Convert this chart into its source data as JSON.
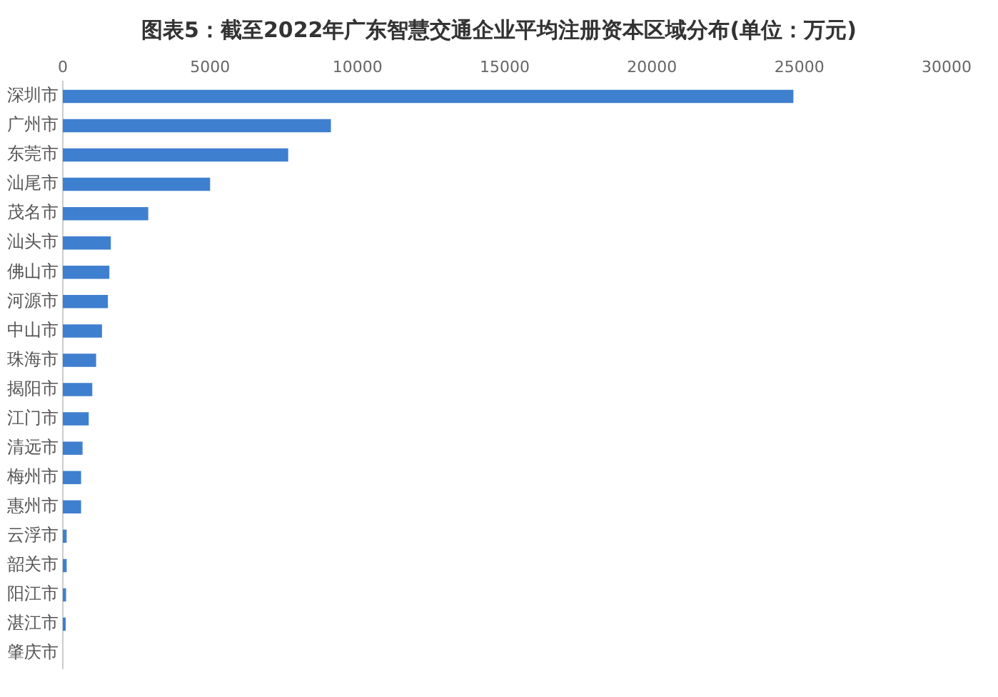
{
  "chart_data": {
    "type": "bar",
    "orientation": "horizontal",
    "title": "图表5：截至2022年广东智慧交通企业平均注册资本区域分布(单位：万元)",
    "categories": [
      "深圳市",
      "广州市",
      "东莞市",
      "汕尾市",
      "茂名市",
      "汕头市",
      "佛山市",
      "河源市",
      "中山市",
      "珠海市",
      "揭阳市",
      "江门市",
      "清远市",
      "梅州市",
      "惠州市",
      "云浮市",
      "韶关市",
      "阳江市",
      "湛江市",
      "肇庆市"
    ],
    "values": [
      24800,
      9100,
      7650,
      5000,
      2900,
      1630,
      1580,
      1530,
      1330,
      1130,
      1000,
      880,
      670,
      620,
      620,
      130,
      130,
      110,
      100,
      0
    ],
    "color": "#3f7fcf",
    "xlim": [
      0,
      30000
    ],
    "xticks": [
      0,
      5000,
      10000,
      15000,
      20000,
      25000,
      30000
    ],
    "grid": false,
    "legend": false
  }
}
